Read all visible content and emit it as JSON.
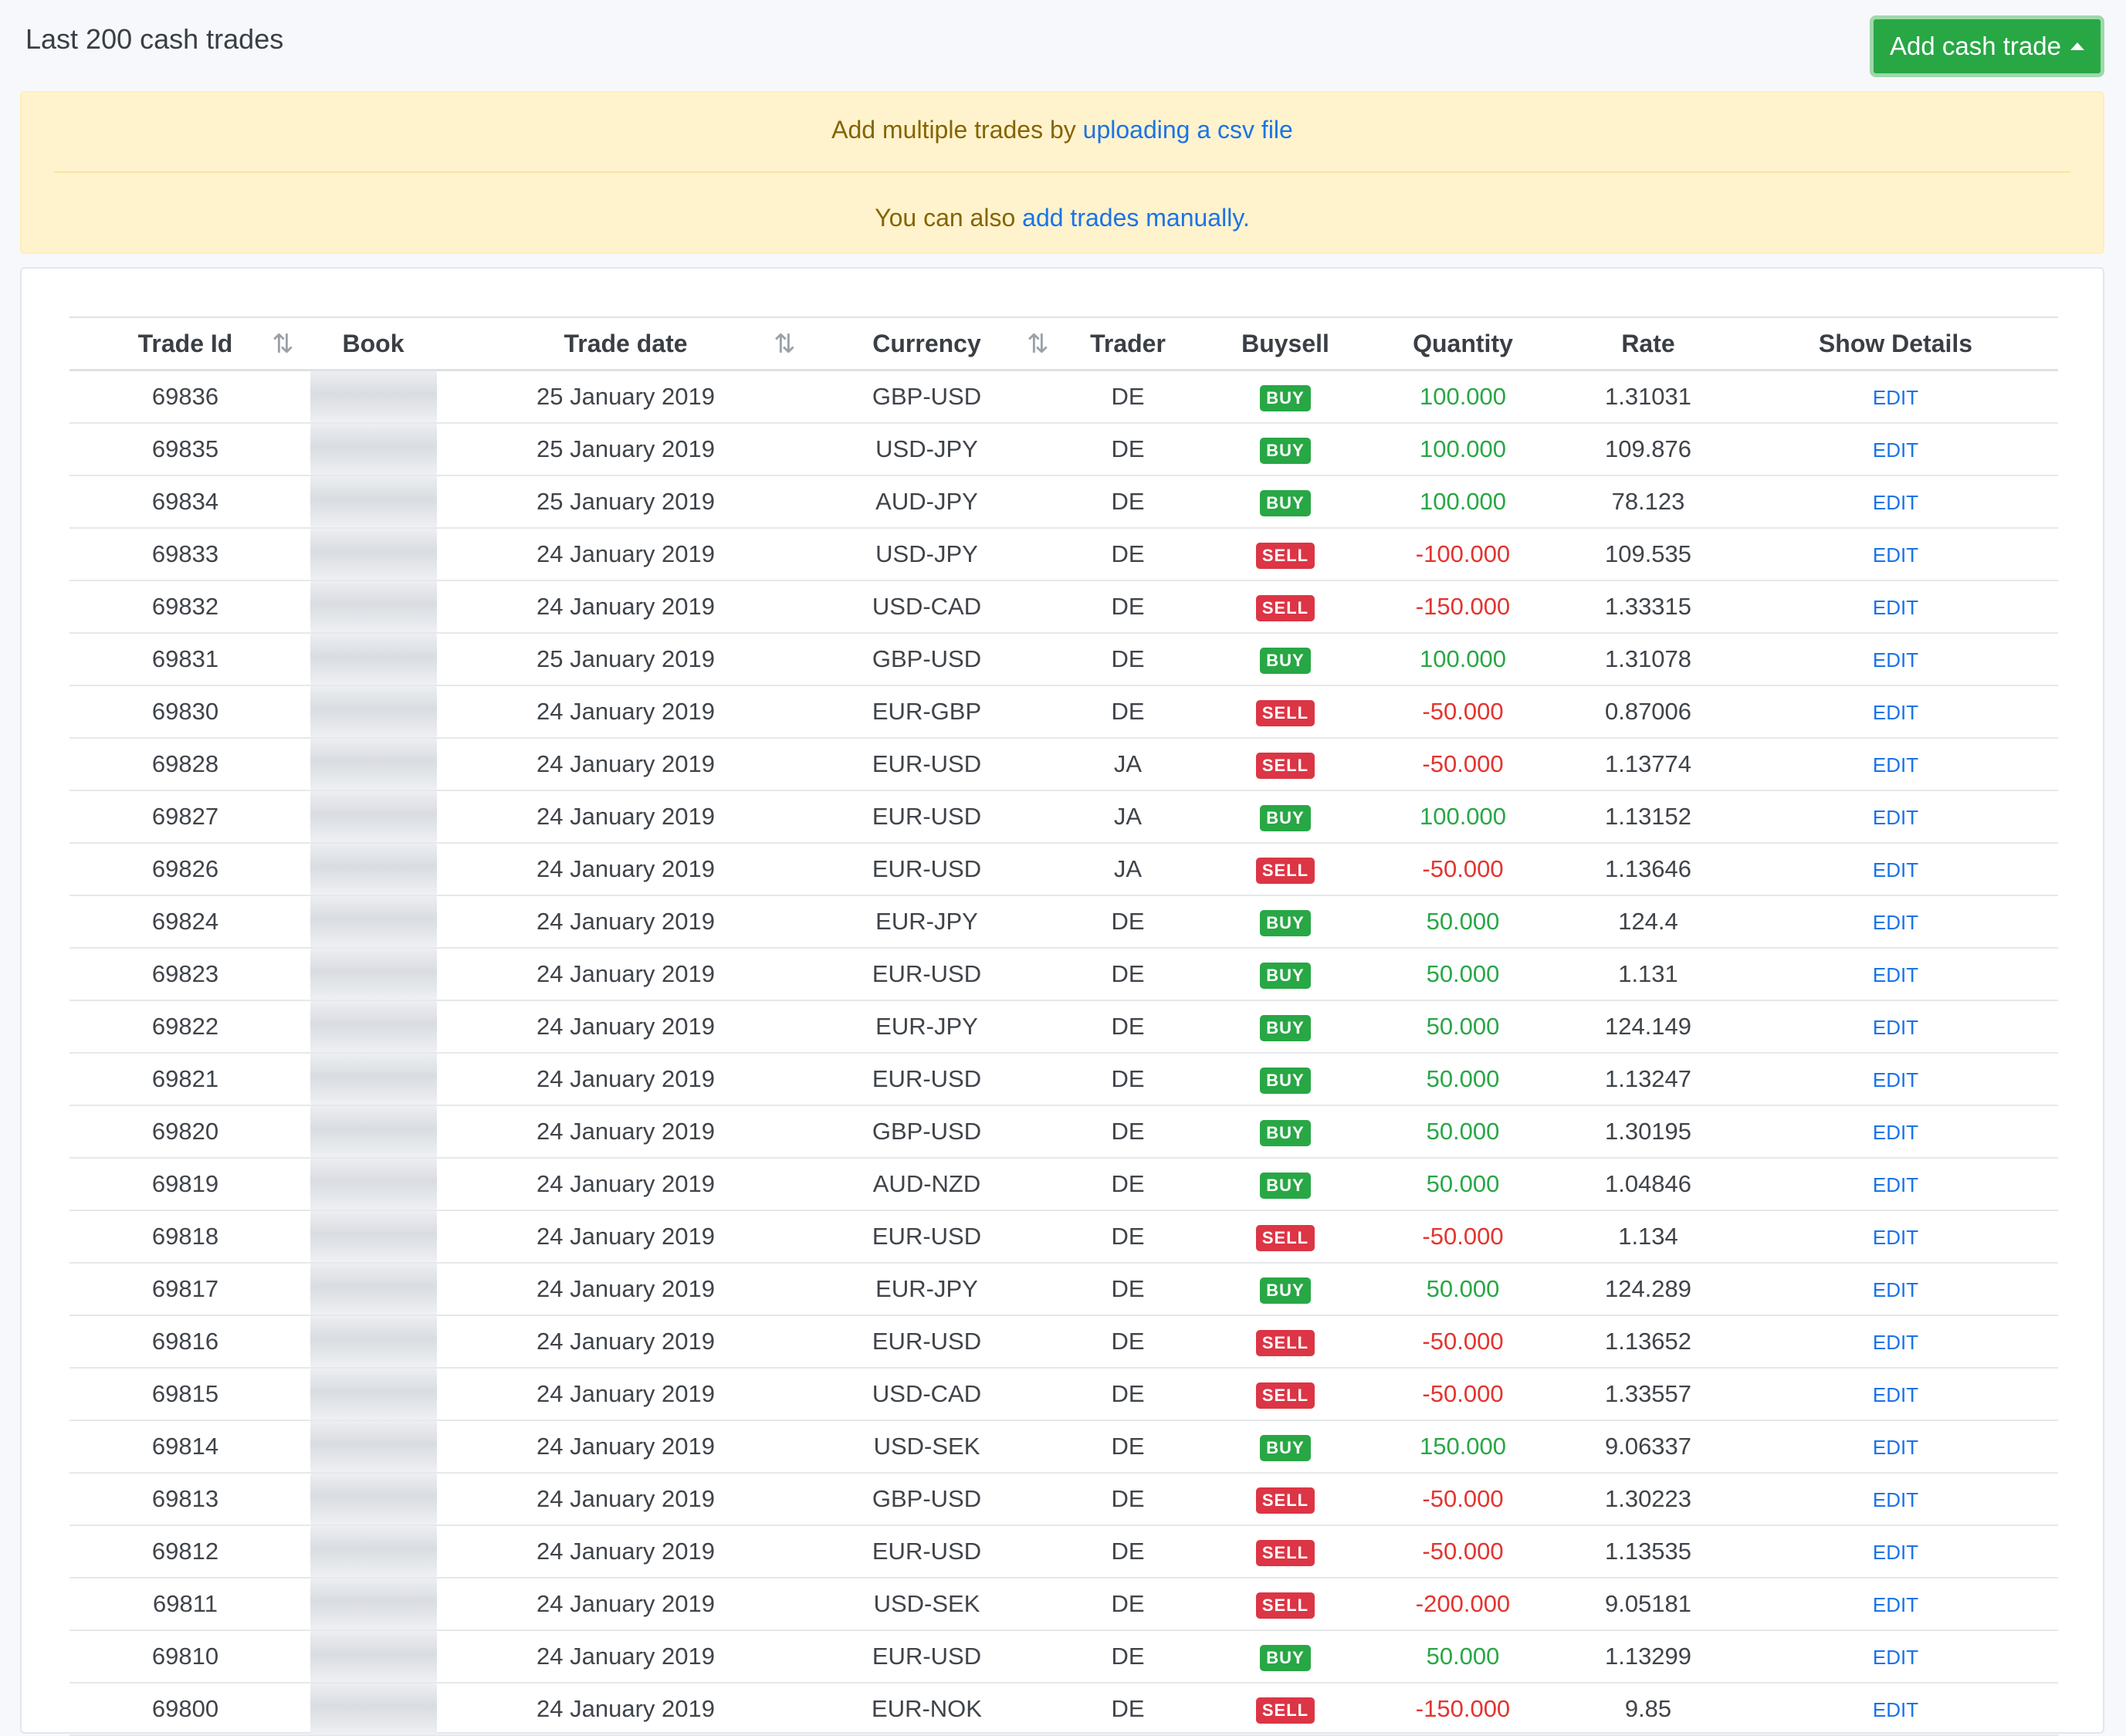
{
  "header": {
    "title": "Last 200 cash trades",
    "add_button_label": "Add cash trade"
  },
  "notice": {
    "line1_prefix": "Add multiple trades by ",
    "line1_link": "uploading a csv file",
    "line2_prefix": "You can also ",
    "line2_link": "add trades manually."
  },
  "table": {
    "columns": [
      "Trade Id",
      "Book",
      "Trade date",
      "Currency",
      "Trader",
      "Buysell",
      "Quantity",
      "Rate",
      "Show Details"
    ],
    "sort_icon": "⇅",
    "edit_label": "EDIT",
    "rows": [
      {
        "id": "69836",
        "date": "25 January 2019",
        "currency": "GBP-USD",
        "trader": "DE",
        "side": "BUY",
        "qty": "100.000",
        "rate": "1.31031"
      },
      {
        "id": "69835",
        "date": "25 January 2019",
        "currency": "USD-JPY",
        "trader": "DE",
        "side": "BUY",
        "qty": "100.000",
        "rate": "109.876"
      },
      {
        "id": "69834",
        "date": "25 January 2019",
        "currency": "AUD-JPY",
        "trader": "DE",
        "side": "BUY",
        "qty": "100.000",
        "rate": "78.123"
      },
      {
        "id": "69833",
        "date": "24 January 2019",
        "currency": "USD-JPY",
        "trader": "DE",
        "side": "SELL",
        "qty": "-100.000",
        "rate": "109.535"
      },
      {
        "id": "69832",
        "date": "24 January 2019",
        "currency": "USD-CAD",
        "trader": "DE",
        "side": "SELL",
        "qty": "-150.000",
        "rate": "1.33315"
      },
      {
        "id": "69831",
        "date": "25 January 2019",
        "currency": "GBP-USD",
        "trader": "DE",
        "side": "BUY",
        "qty": "100.000",
        "rate": "1.31078"
      },
      {
        "id": "69830",
        "date": "24 January 2019",
        "currency": "EUR-GBP",
        "trader": "DE",
        "side": "SELL",
        "qty": "-50.000",
        "rate": "0.87006"
      },
      {
        "id": "69828",
        "date": "24 January 2019",
        "currency": "EUR-USD",
        "trader": "JA",
        "side": "SELL",
        "qty": "-50.000",
        "rate": "1.13774"
      },
      {
        "id": "69827",
        "date": "24 January 2019",
        "currency": "EUR-USD",
        "trader": "JA",
        "side": "BUY",
        "qty": "100.000",
        "rate": "1.13152"
      },
      {
        "id": "69826",
        "date": "24 January 2019",
        "currency": "EUR-USD",
        "trader": "JA",
        "side": "SELL",
        "qty": "-50.000",
        "rate": "1.13646"
      },
      {
        "id": "69824",
        "date": "24 January 2019",
        "currency": "EUR-JPY",
        "trader": "DE",
        "side": "BUY",
        "qty": "50.000",
        "rate": "124.4"
      },
      {
        "id": "69823",
        "date": "24 January 2019",
        "currency": "EUR-USD",
        "trader": "DE",
        "side": "BUY",
        "qty": "50.000",
        "rate": "1.131"
      },
      {
        "id": "69822",
        "date": "24 January 2019",
        "currency": "EUR-JPY",
        "trader": "DE",
        "side": "BUY",
        "qty": "50.000",
        "rate": "124.149"
      },
      {
        "id": "69821",
        "date": "24 January 2019",
        "currency": "EUR-USD",
        "trader": "DE",
        "side": "BUY",
        "qty": "50.000",
        "rate": "1.13247"
      },
      {
        "id": "69820",
        "date": "24 January 2019",
        "currency": "GBP-USD",
        "trader": "DE",
        "side": "BUY",
        "qty": "50.000",
        "rate": "1.30195"
      },
      {
        "id": "69819",
        "date": "24 January 2019",
        "currency": "AUD-NZD",
        "trader": "DE",
        "side": "BUY",
        "qty": "50.000",
        "rate": "1.04846"
      },
      {
        "id": "69818",
        "date": "24 January 2019",
        "currency": "EUR-USD",
        "trader": "DE",
        "side": "SELL",
        "qty": "-50.000",
        "rate": "1.134"
      },
      {
        "id": "69817",
        "date": "24 January 2019",
        "currency": "EUR-JPY",
        "trader": "DE",
        "side": "BUY",
        "qty": "50.000",
        "rate": "124.289"
      },
      {
        "id": "69816",
        "date": "24 January 2019",
        "currency": "EUR-USD",
        "trader": "DE",
        "side": "SELL",
        "qty": "-50.000",
        "rate": "1.13652"
      },
      {
        "id": "69815",
        "date": "24 January 2019",
        "currency": "USD-CAD",
        "trader": "DE",
        "side": "SELL",
        "qty": "-50.000",
        "rate": "1.33557"
      },
      {
        "id": "69814",
        "date": "24 January 2019",
        "currency": "USD-SEK",
        "trader": "DE",
        "side": "BUY",
        "qty": "150.000",
        "rate": "9.06337"
      },
      {
        "id": "69813",
        "date": "24 January 2019",
        "currency": "GBP-USD",
        "trader": "DE",
        "side": "SELL",
        "qty": "-50.000",
        "rate": "1.30223"
      },
      {
        "id": "69812",
        "date": "24 January 2019",
        "currency": "EUR-USD",
        "trader": "DE",
        "side": "SELL",
        "qty": "-50.000",
        "rate": "1.13535"
      },
      {
        "id": "69811",
        "date": "24 January 2019",
        "currency": "USD-SEK",
        "trader": "DE",
        "side": "SELL",
        "qty": "-200.000",
        "rate": "9.05181"
      },
      {
        "id": "69810",
        "date": "24 January 2019",
        "currency": "EUR-USD",
        "trader": "DE",
        "side": "BUY",
        "qty": "50.000",
        "rate": "1.13299"
      },
      {
        "id": "69800",
        "date": "24 January 2019",
        "currency": "EUR-NOK",
        "trader": "DE",
        "side": "SELL",
        "qty": "-150.000",
        "rate": "9.85"
      }
    ]
  }
}
